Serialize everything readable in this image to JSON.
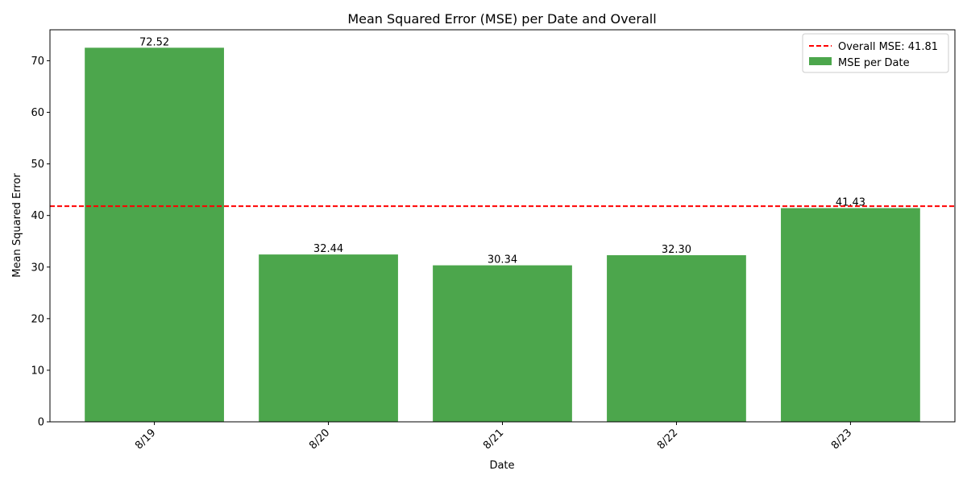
{
  "chart_data": {
    "type": "bar",
    "title": "Mean Squared Error (MSE) per Date and Overall",
    "xlabel": "Date",
    "ylabel": "Mean Squared Error",
    "categories": [
      "8/19",
      "8/20",
      "8/21",
      "8/22",
      "8/23"
    ],
    "series": [
      {
        "name": "MSE per Date",
        "values": [
          72.52,
          32.44,
          30.34,
          32.3,
          41.43
        ],
        "data_labels": [
          "72.52",
          "32.44",
          "30.34",
          "32.30",
          "41.43"
        ],
        "color": "#4ca64c"
      }
    ],
    "reference_line": {
      "name": "Overall MSE: 41.81",
      "value": 41.81,
      "color": "#ff0000",
      "style": "dashed"
    },
    "ylim": [
      0,
      76
    ],
    "yticks": [
      0,
      10,
      20,
      30,
      40,
      50,
      60,
      70
    ],
    "xtick_rotation_deg": 45,
    "grid": false,
    "legend_position": "top-right"
  }
}
